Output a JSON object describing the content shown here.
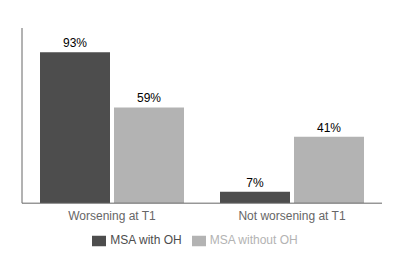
{
  "chart_data": {
    "type": "bar",
    "categories": [
      "Worsening at T1",
      "Not worsening at T1"
    ],
    "series": [
      {
        "name": "MSA with OH",
        "color": "#4d4d4d",
        "values": [
          93,
          7
        ],
        "value_labels": [
          "93%",
          "7%"
        ]
      },
      {
        "name": "MSA without OH",
        "color": "#b3b3b3",
        "values": [
          59,
          41
        ],
        "value_labels": [
          "59%",
          "41%"
        ]
      }
    ],
    "ylim": [
      0,
      108
    ],
    "data_labels": true,
    "tick_labels": "x",
    "legend": "bottom"
  }
}
